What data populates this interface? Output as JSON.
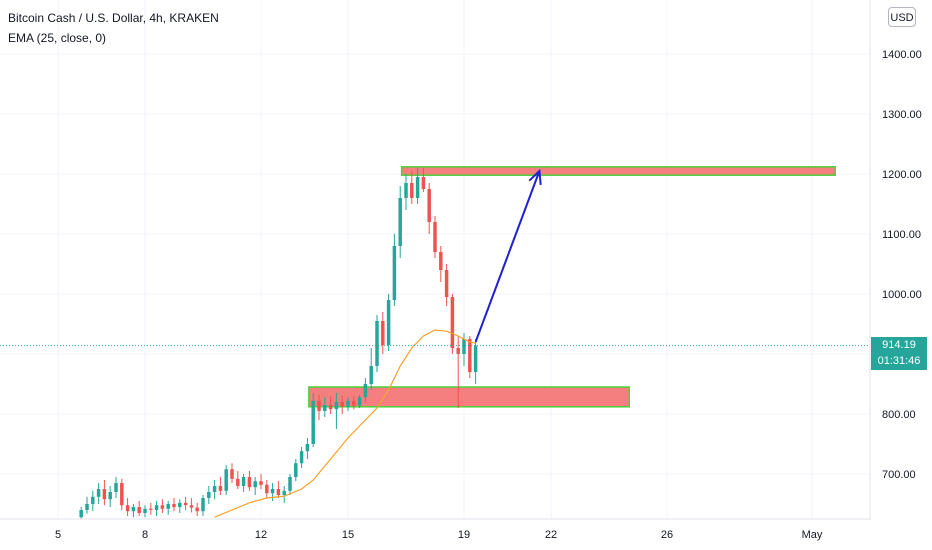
{
  "legend": {
    "title": "Bitcoin Cash / U.S. Dollar, 4h, KRAKEN",
    "ema": "EMA (25, close, 0)"
  },
  "currency_button": "USD",
  "current_price": {
    "price_label": "914.19",
    "countdown_label": "01:31:46"
  },
  "colors": {
    "up": "#26a69a",
    "down": "#ef5350",
    "ema": "#f7a128",
    "zone_fill": "#f57f7f",
    "zone_border": "#4cd137",
    "arrow": "#1f1fd6",
    "price_line": "#26a69a"
  },
  "chart_data": {
    "type": "candlestick",
    "y_ticks": [
      "700.00",
      "800.00",
      "900.00",
      "1000.00",
      "1100.00",
      "1200.00",
      "1300.00",
      "1400.00"
    ],
    "y_tick_values": [
      700,
      800,
      900,
      1000,
      1100,
      1200,
      1300,
      1400
    ],
    "x_ticks": [
      {
        "label": "5",
        "day": 5
      },
      {
        "label": "8",
        "day": 8
      },
      {
        "label": "12",
        "day": 12
      },
      {
        "label": "15",
        "day": 15
      },
      {
        "label": "19",
        "day": 19
      },
      {
        "label": "22",
        "day": 22
      },
      {
        "label": "26",
        "day": 26
      },
      {
        "label": "May",
        "day": 31
      }
    ],
    "x_range": [
      3,
      33
    ],
    "y_range": [
      625,
      1490
    ],
    "ohlc": [
      [
        5.8,
        628,
        645,
        625,
        640
      ],
      [
        6.0,
        640,
        662,
        634,
        650
      ],
      [
        6.2,
        650,
        672,
        638,
        662
      ],
      [
        6.4,
        662,
        685,
        650,
        675
      ],
      [
        6.6,
        675,
        690,
        648,
        658
      ],
      [
        6.8,
        658,
        680,
        645,
        670
      ],
      [
        7.0,
        670,
        695,
        660,
        685
      ],
      [
        7.2,
        685,
        692,
        640,
        648
      ],
      [
        7.4,
        648,
        660,
        630,
        638
      ],
      [
        7.6,
        638,
        650,
        628,
        645
      ],
      [
        7.8,
        645,
        655,
        630,
        635
      ],
      [
        8.0,
        635,
        648,
        628,
        642
      ],
      [
        8.2,
        642,
        652,
        632,
        640
      ],
      [
        8.4,
        640,
        655,
        630,
        648
      ],
      [
        8.6,
        648,
        658,
        635,
        642
      ],
      [
        8.8,
        642,
        655,
        632,
        650
      ],
      [
        9.0,
        650,
        660,
        638,
        645
      ],
      [
        9.2,
        645,
        658,
        635,
        652
      ],
      [
        9.4,
        652,
        662,
        640,
        648
      ],
      [
        9.6,
        648,
        660,
        636,
        644
      ],
      [
        9.8,
        644,
        652,
        630,
        638
      ],
      [
        10.0,
        638,
        665,
        630,
        660
      ],
      [
        10.2,
        660,
        680,
        650,
        670
      ],
      [
        10.4,
        670,
        690,
        658,
        680
      ],
      [
        10.6,
        680,
        695,
        665,
        672
      ],
      [
        10.8,
        672,
        715,
        665,
        708
      ],
      [
        11.0,
        708,
        718,
        685,
        692
      ],
      [
        11.2,
        692,
        705,
        675,
        680
      ],
      [
        11.4,
        680,
        700,
        670,
        695
      ],
      [
        11.6,
        695,
        705,
        672,
        678
      ],
      [
        11.8,
        678,
        695,
        665,
        688
      ],
      [
        12.0,
        688,
        700,
        675,
        682
      ],
      [
        12.2,
        682,
        690,
        660,
        668
      ],
      [
        12.4,
        668,
        685,
        655,
        675
      ],
      [
        12.6,
        675,
        688,
        660,
        665
      ],
      [
        12.8,
        665,
        680,
        652,
        672
      ],
      [
        13.0,
        672,
        700,
        665,
        695
      ],
      [
        13.2,
        695,
        725,
        688,
        718
      ],
      [
        13.4,
        718,
        745,
        710,
        738
      ],
      [
        13.6,
        738,
        760,
        725,
        750
      ],
      [
        13.8,
        750,
        835,
        745,
        822
      ],
      [
        14.0,
        822,
        832,
        790,
        805
      ],
      [
        14.2,
        805,
        828,
        795,
        815
      ],
      [
        14.4,
        815,
        830,
        800,
        808
      ],
      [
        14.6,
        808,
        835,
        775,
        820
      ],
      [
        14.8,
        820,
        830,
        800,
        812
      ],
      [
        15.0,
        812,
        828,
        805,
        822
      ],
      [
        15.2,
        822,
        830,
        808,
        814
      ],
      [
        15.4,
        814,
        832,
        810,
        828
      ],
      [
        15.6,
        828,
        860,
        820,
        850
      ],
      [
        15.8,
        850,
        910,
        840,
        880
      ],
      [
        16.0,
        880,
        965,
        870,
        955
      ],
      [
        16.2,
        955,
        970,
        900,
        915
      ],
      [
        16.4,
        915,
        1000,
        905,
        990
      ],
      [
        16.6,
        990,
        1100,
        980,
        1080
      ],
      [
        16.8,
        1080,
        1180,
        1060,
        1160
      ],
      [
        17.0,
        1160,
        1200,
        1140,
        1185
      ],
      [
        17.2,
        1185,
        1205,
        1150,
        1160
      ],
      [
        17.4,
        1160,
        1210,
        1150,
        1195
      ],
      [
        17.6,
        1195,
        1210,
        1170,
        1175
      ],
      [
        17.8,
        1175,
        1185,
        1100,
        1120
      ],
      [
        18.0,
        1120,
        1130,
        1060,
        1070
      ],
      [
        18.2,
        1070,
        1080,
        1020,
        1040
      ],
      [
        18.4,
        1040,
        1050,
        980,
        995
      ],
      [
        18.6,
        995,
        1000,
        900,
        910
      ],
      [
        18.8,
        910,
        930,
        810,
        900
      ],
      [
        19.0,
        900,
        935,
        880,
        925
      ],
      [
        19.2,
        925,
        930,
        860,
        870
      ],
      [
        19.4,
        870,
        925,
        850,
        914
      ]
    ],
    "ema": [
      [
        10.4,
        628
      ],
      [
        11.0,
        640
      ],
      [
        11.6,
        652
      ],
      [
        12.2,
        660
      ],
      [
        12.8,
        663
      ],
      [
        13.4,
        675
      ],
      [
        13.8,
        690
      ],
      [
        14.4,
        725
      ],
      [
        15.0,
        760
      ],
      [
        15.6,
        790
      ],
      [
        16.0,
        810
      ],
      [
        16.4,
        840
      ],
      [
        16.8,
        880
      ],
      [
        17.2,
        910
      ],
      [
        17.6,
        930
      ],
      [
        18.0,
        940
      ],
      [
        18.4,
        938
      ],
      [
        18.8,
        930
      ],
      [
        19.2,
        920
      ],
      [
        19.4,
        918
      ]
    ],
    "zones": [
      {
        "x0": 16.85,
        "x1": 31.8,
        "y0": 1198,
        "y1": 1212
      },
      {
        "x0": 13.65,
        "x1": 24.7,
        "y0": 812,
        "y1": 845
      }
    ],
    "arrow": {
      "x0": 19.4,
      "y0": 920,
      "x1": 21.6,
      "y1": 1205
    }
  }
}
